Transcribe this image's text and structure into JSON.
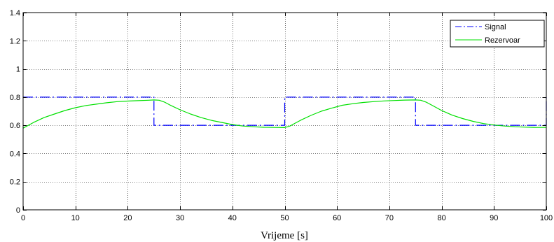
{
  "chart_data": {
    "type": "line",
    "title": "",
    "xlabel": "Vrijeme [s]",
    "ylabel": "",
    "xlim": [
      0,
      100
    ],
    "ylim": [
      0,
      1.4
    ],
    "xticks": [
      0,
      10,
      20,
      30,
      40,
      50,
      60,
      70,
      80,
      90,
      100
    ],
    "yticks": [
      0,
      0.2,
      0.4,
      0.6,
      0.8,
      1,
      1.2,
      1.4
    ],
    "xtick_labels": [
      "0",
      "10",
      "20",
      "30",
      "40",
      "50",
      "60",
      "70",
      "80",
      "90",
      "100"
    ],
    "ytick_labels": [
      "0",
      "0.2",
      "0.4",
      "0.6",
      "0.8",
      "1",
      "1.2",
      "1.4"
    ],
    "grid": true,
    "legend_position": "top-right",
    "series": [
      {
        "name": "Signal",
        "color": "#0000ff",
        "style": "dashdot",
        "x": [
          0,
          25,
          25,
          50,
          50,
          75,
          75,
          100,
          100
        ],
        "y": [
          0.8,
          0.8,
          0.6,
          0.6,
          0.8,
          0.8,
          0.6,
          0.6,
          0.8
        ]
      },
      {
        "name": "Rezervoar",
        "color": "#00e000",
        "style": "solid",
        "x": [
          0,
          2,
          4,
          6,
          8,
          10,
          12,
          14,
          16,
          18,
          20,
          22,
          24,
          25,
          26,
          27,
          28,
          30,
          32,
          34,
          36,
          38,
          40,
          42,
          44,
          46,
          48,
          50,
          51,
          52,
          53,
          55,
          57,
          59,
          61,
          63,
          65,
          67,
          69,
          71,
          73,
          75,
          76,
          77,
          78,
          80,
          82,
          84,
          86,
          88,
          90,
          92,
          94,
          96,
          98,
          100
        ],
        "y": [
          0.58,
          0.62,
          0.655,
          0.68,
          0.705,
          0.725,
          0.74,
          0.75,
          0.76,
          0.768,
          0.772,
          0.775,
          0.778,
          0.78,
          0.778,
          0.765,
          0.745,
          0.71,
          0.68,
          0.655,
          0.635,
          0.62,
          0.605,
          0.595,
          0.59,
          0.586,
          0.585,
          0.584,
          0.595,
          0.615,
          0.635,
          0.67,
          0.7,
          0.722,
          0.742,
          0.753,
          0.762,
          0.768,
          0.773,
          0.776,
          0.779,
          0.78,
          0.778,
          0.765,
          0.745,
          0.705,
          0.672,
          0.648,
          0.628,
          0.612,
          0.602,
          0.595,
          0.59,
          0.587,
          0.585,
          0.585
        ]
      }
    ]
  }
}
